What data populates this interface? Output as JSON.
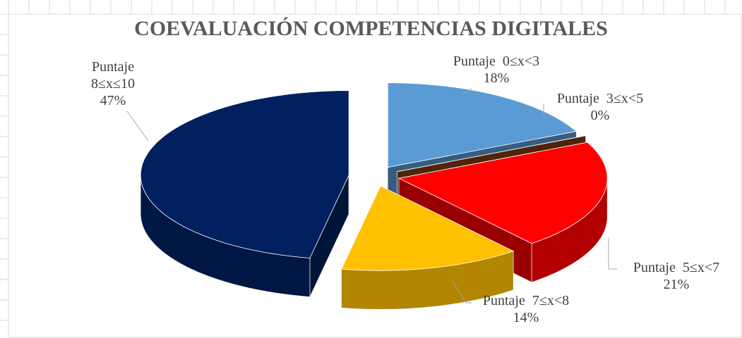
{
  "chart_data": {
    "type": "pie",
    "title": "COEVALUACIÓN COMPETENCIAS DIGITALES",
    "categories": [
      "Puntaje  0≤x<3",
      "Puntaje  3≤x<5",
      "Puntaje  5≤x<7",
      "Puntaje  7≤x<8",
      "Puntaje 8≤x≤10"
    ],
    "values": [
      18,
      0,
      21,
      14,
      47
    ],
    "value_labels": [
      "18%",
      "0%",
      "21%",
      "14%",
      "47%"
    ],
    "colors": [
      "#5b9bd5",
      "#843c0c",
      "#ff0000",
      "#ffc000",
      "#002060"
    ]
  }
}
